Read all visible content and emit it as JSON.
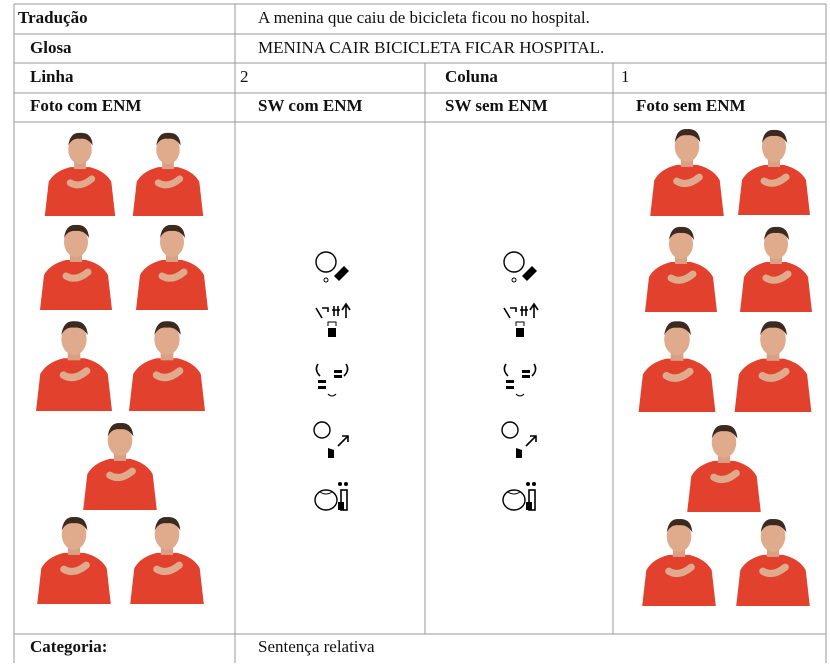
{
  "table": {
    "traducao": {
      "label": "Tradução",
      "value": "A menina que caiu de bicicleta ficou no hospital."
    },
    "glosa": {
      "label": "Glosa",
      "value": "MENINA CAIR BICICLETA FICAR HOSPITAL."
    },
    "linha": {
      "label": "Linha",
      "value": "2"
    },
    "coluna": {
      "label": "Coluna",
      "value": "1"
    },
    "headers": [
      "Foto com ENM",
      "SW com ENM",
      "SW sem ENM",
      "Foto sem ENM"
    ],
    "categoria": {
      "label": "Categoria:",
      "value": "Sentença relativa"
    }
  }
}
